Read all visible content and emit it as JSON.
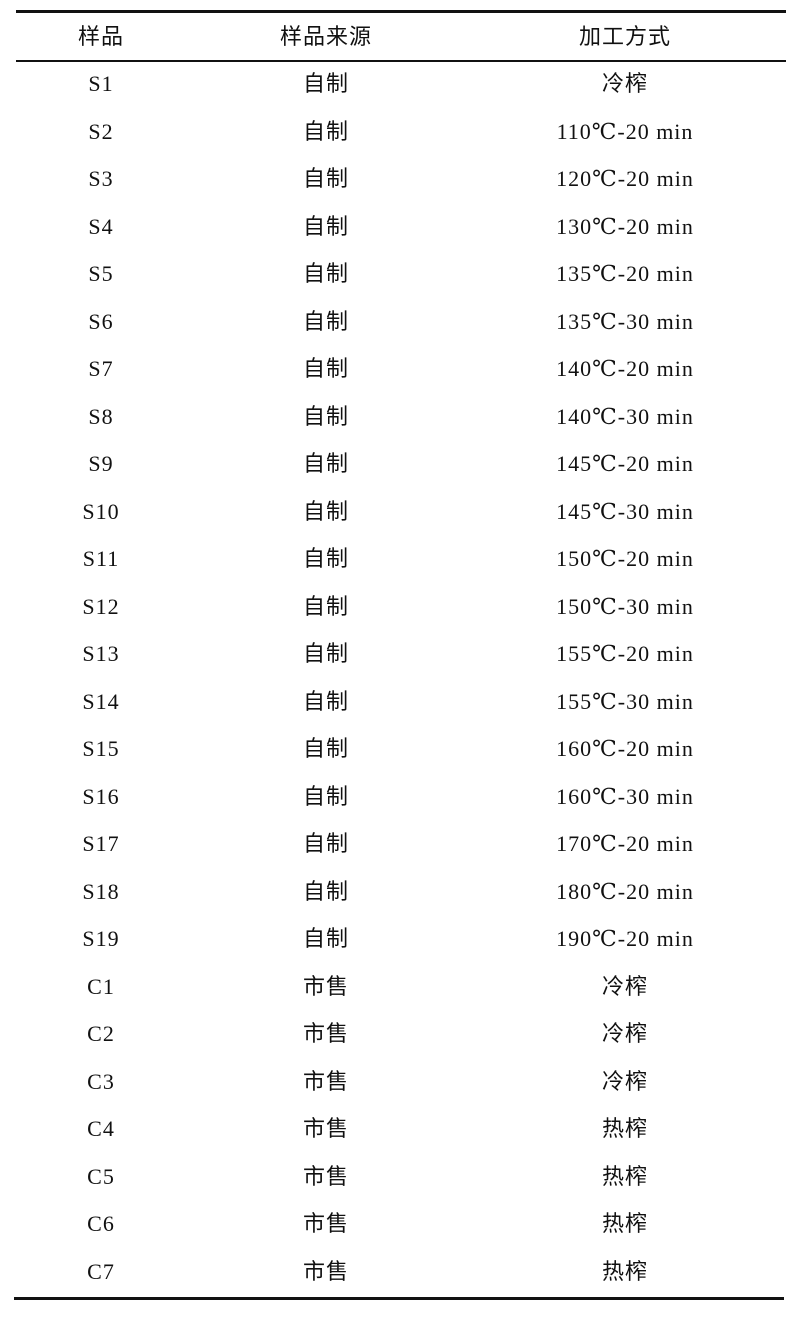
{
  "table": {
    "headers": [
      "样品",
      "样品来源",
      "加工方式"
    ],
    "rows": [
      [
        "S1",
        "自制",
        "冷榨"
      ],
      [
        "S2",
        "自制",
        "110℃-20 min"
      ],
      [
        "S3",
        "自制",
        "120℃-20 min"
      ],
      [
        "S4",
        "自制",
        "130℃-20 min"
      ],
      [
        "S5",
        "自制",
        "135℃-20 min"
      ],
      [
        "S6",
        "自制",
        "135℃-30 min"
      ],
      [
        "S7",
        "自制",
        "140℃-20 min"
      ],
      [
        "S8",
        "自制",
        "140℃-30 min"
      ],
      [
        "S9",
        "自制",
        "145℃-20 min"
      ],
      [
        "S10",
        "自制",
        "145℃-30 min"
      ],
      [
        "S11",
        "自制",
        "150℃-20 min"
      ],
      [
        "S12",
        "自制",
        "150℃-30 min"
      ],
      [
        "S13",
        "自制",
        "155℃-20 min"
      ],
      [
        "S14",
        "自制",
        "155℃-30 min"
      ],
      [
        "S15",
        "自制",
        "160℃-20 min"
      ],
      [
        "S16",
        "自制",
        "160℃-30 min"
      ],
      [
        "S17",
        "自制",
        "170℃-20 min"
      ],
      [
        "S18",
        "自制",
        "180℃-20 min"
      ],
      [
        "S19",
        "自制",
        "190℃-20 min"
      ],
      [
        "C1",
        "市售",
        "冷榨"
      ],
      [
        "C2",
        "市售",
        "冷榨"
      ],
      [
        "C3",
        "市售",
        "冷榨"
      ],
      [
        "C4",
        "市售",
        "热榨"
      ],
      [
        "C5",
        "市售",
        "热榨"
      ],
      [
        "C6",
        "市售",
        "热榨"
      ],
      [
        "C7",
        "市售",
        "热榨"
      ]
    ]
  }
}
